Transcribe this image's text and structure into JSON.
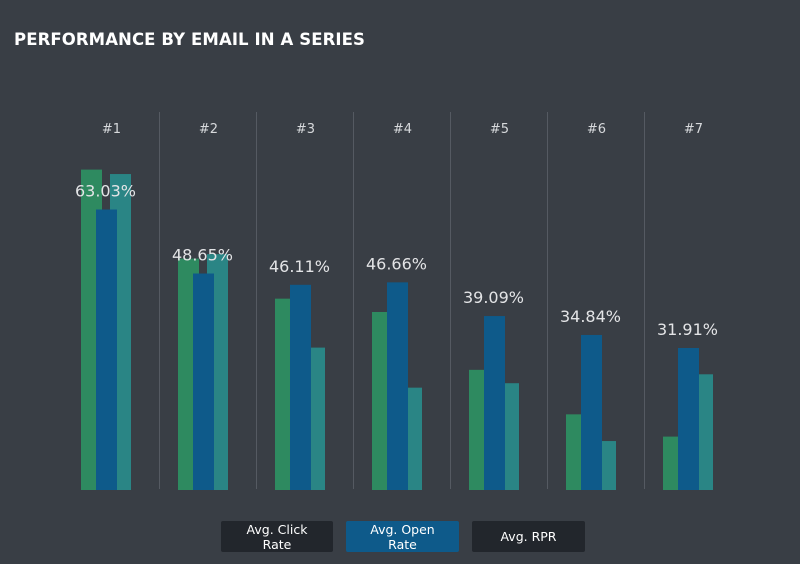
{
  "title": "PERFORMANCE BY EMAIL IN A SERIES",
  "chart_data": {
    "type": "bar",
    "title": "PERFORMANCE BY EMAIL IN A SERIES",
    "categories": [
      "#1",
      "#2",
      "#3",
      "#4",
      "#5",
      "#6",
      "#7"
    ],
    "series": [
      {
        "name": "Avg. Click Rate",
        "color": "#2e8a60",
        "values": [
          72,
          52,
          43,
          40,
          27,
          17,
          12
        ]
      },
      {
        "name": "Avg. Open Rate",
        "color": "#0e5a8a",
        "values": [
          63.03,
          48.65,
          46.11,
          46.66,
          39.09,
          34.84,
          31.91
        ]
      },
      {
        "name": "Avg. RPR",
        "color": "#2a8585",
        "values": [
          71,
          53,
          32,
          23,
          24,
          11,
          26
        ]
      }
    ],
    "data_labels": [
      "63.03%",
      "48.65%",
      "46.11%",
      "46.66%",
      "39.09%",
      "34.84%",
      "31.91%"
    ],
    "ylim": [
      0,
      80
    ],
    "grid": false,
    "legend": "bottom"
  },
  "legend": {
    "click_rate": "Avg. Click Rate",
    "open_rate": "Avg. Open Rate",
    "rpr": "Avg. RPR"
  },
  "colors": {
    "background": "#393e45",
    "divider": "#555a62",
    "legend_inactive": "#22262c",
    "legend_active": "#0e5a8a"
  }
}
